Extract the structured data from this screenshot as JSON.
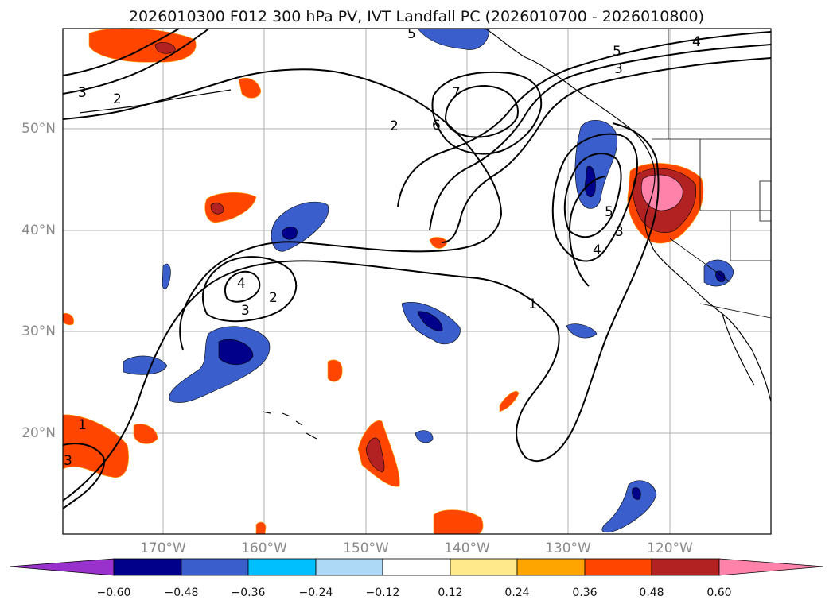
{
  "title": "2026010300 F012 300 hPa PV, IVT Landfall PC (2026010700 - 2026010800)",
  "map": {
    "lon_labels": [
      "170°W",
      "160°W",
      "150°W",
      "140°W",
      "130°W",
      "120°W"
    ],
    "lat_labels": [
      "50°N",
      "40°N",
      "30°N",
      "20°N"
    ],
    "contour_labels": [
      "7",
      "6",
      "5",
      "5",
      "5",
      "4",
      "4",
      "4",
      "3",
      "3",
      "3",
      "3",
      "2",
      "2",
      "2",
      "1",
      "1",
      "3"
    ]
  },
  "colorbar": {
    "ticks": [
      "−0.60",
      "−0.48",
      "−0.36",
      "−0.24",
      "−0.12",
      "0.12",
      "0.24",
      "0.36",
      "0.48",
      "0.60"
    ],
    "colors": [
      "#9932cc",
      "#00008b",
      "#3a5fcd",
      "#00bfff",
      "#add8f6",
      "#ffffff",
      "#ffe98a",
      "#ffa500",
      "#ff4500",
      "#b22222",
      "#ff82ab"
    ]
  },
  "colors": {
    "neg_dark": "#00008b",
    "neg_mid": "#3a5fcd",
    "neg_light": "#00bfff",
    "neg_pale": "#add8f6",
    "pos_pale": "#ffe98a",
    "pos_orange": "#ffa500",
    "pos_red": "#ff4500",
    "pos_dark": "#b22222",
    "pos_pink": "#ff82ab"
  }
}
